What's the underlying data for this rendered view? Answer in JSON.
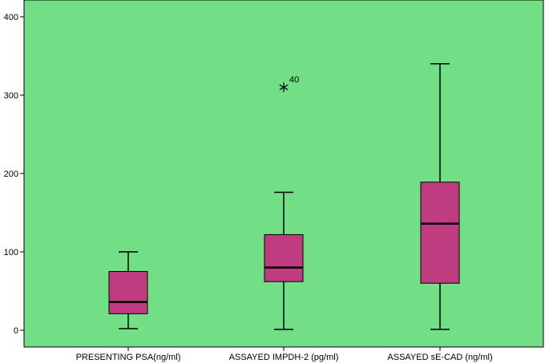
{
  "chart_data": {
    "type": "boxplot",
    "title": "",
    "xlabel": "",
    "ylabel": "",
    "ylim": [
      -22,
      405
    ],
    "yticks": [
      0,
      100,
      200,
      300,
      400
    ],
    "ytick_labels": [
      "0",
      "100",
      "200",
      "300",
      "400"
    ],
    "grid": false,
    "legend": "none",
    "colors": {
      "plot_background": "#72de85",
      "box_fill": "#bf3c80",
      "stroke": "#000000"
    },
    "categories": [
      "PRESENTING PSA(ng/ml)",
      "ASSAYED IMPDH-2 (pg/ml)",
      "ASSAYED sE-CAD (ng/ml)"
    ],
    "boxes": [
      {
        "whisker_low": 2,
        "q1": 21,
        "median": 36,
        "q3": 75,
        "whisker_high": 100,
        "outliers": []
      },
      {
        "whisker_low": 1,
        "q1": 62,
        "median": 80,
        "q3": 122,
        "whisker_high": 176,
        "outliers": [
          {
            "value": 310,
            "label": "40",
            "marker": "star"
          }
        ]
      },
      {
        "whisker_low": 1,
        "q1": 60,
        "median": 136,
        "q3": 189,
        "whisker_high": 340,
        "outliers": []
      }
    ]
  }
}
